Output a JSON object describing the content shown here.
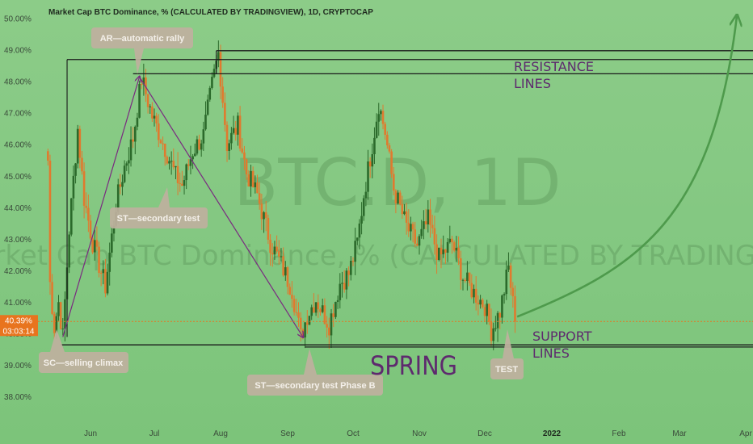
{
  "header": {
    "title": "Market Cap BTC Dominance, % (CALCULATED BY TRADINGVIEW), 1D, CRYPTOCAP"
  },
  "watermark": {
    "symbol": "BTC.D, 1D",
    "name": "Market Cap BTC Dominance, % (CALCULATED BY TRADINGVIEW)"
  },
  "price_tag": {
    "value": "40.39%",
    "countdown": "03:03:14"
  },
  "annotations": {
    "ar": "AR—automatic rally",
    "st1": "ST—secondary test",
    "sc": "SC—selling climax",
    "st2": "ST—secondary test Phase B",
    "test": "TEST",
    "spring": "SPRING",
    "resistance_1": "RESISTANCE",
    "resistance_2": "LINES",
    "support_1": "SUPPORT",
    "support_2": "LINES"
  },
  "colors": {
    "background": "#84c882",
    "up_candle": "#2b6a2b",
    "down_candle": "#e07a2e",
    "trend_line": "#7a2a80",
    "forecast_arrow": "#4e9a4c",
    "level_line": "#1a1a1a",
    "price_tag": "#e8741e"
  },
  "chart_data": {
    "type": "candlestick",
    "title": "Market Cap BTC Dominance, % (CALCULATED BY TRADINGVIEW), 1D, CRYPTOCAP",
    "y_unit": "%",
    "ylim": [
      37.5,
      50.5
    ],
    "y_ticks": [
      "50.00%",
      "49.00%",
      "48.00%",
      "47.00%",
      "46.00%",
      "45.00%",
      "44.00%",
      "43.00%",
      "42.00%",
      "41.00%",
      "40.00%",
      "39.00%",
      "38.00%"
    ],
    "x_ticks": [
      {
        "label": "Jun",
        "bold": false
      },
      {
        "label": "Jul",
        "bold": false
      },
      {
        "label": "Aug",
        "bold": false
      },
      {
        "label": "Sep",
        "bold": false
      },
      {
        "label": "Oct",
        "bold": false
      },
      {
        "label": "Nov",
        "bold": false
      },
      {
        "label": "Dec",
        "bold": false
      },
      {
        "label": "2022",
        "bold": true
      },
      {
        "label": "Feb",
        "bold": false
      },
      {
        "label": "Mar",
        "bold": false
      },
      {
        "label": "Apr",
        "bold": false
      }
    ],
    "last_price": 40.39,
    "levels": {
      "resistance": [
        48.98,
        48.7,
        48.25
      ],
      "support": [
        39.65,
        39.58
      ]
    },
    "trend_points": [
      {
        "label": "sc",
        "value": 39.9
      },
      {
        "label": "ar",
        "value": 48.15
      },
      {
        "label": "st2",
        "value": 39.9
      }
    ],
    "close_path": [
      {
        "date": "2021-05-12",
        "close": 45.5
      },
      {
        "date": "2021-05-13",
        "close": 41.6
      },
      {
        "date": "2021-05-15",
        "close": 40.2
      },
      {
        "date": "2021-05-17",
        "close": 41.0
      },
      {
        "date": "2021-05-19",
        "close": 39.9
      },
      {
        "date": "2021-05-22",
        "close": 43.3
      },
      {
        "date": "2021-05-26",
        "close": 46.5
      },
      {
        "date": "2021-05-29",
        "close": 44.3
      },
      {
        "date": "2021-06-02",
        "close": 42.9
      },
      {
        "date": "2021-06-08",
        "close": 41.5
      },
      {
        "date": "2021-06-13",
        "close": 44.1
      },
      {
        "date": "2021-06-17",
        "close": 45.3
      },
      {
        "date": "2021-06-21",
        "close": 46.2
      },
      {
        "date": "2021-06-25",
        "close": 48.1
      },
      {
        "date": "2021-06-30",
        "close": 46.9
      },
      {
        "date": "2021-07-06",
        "close": 45.9
      },
      {
        "date": "2021-07-11",
        "close": 45.0
      },
      {
        "date": "2021-07-14",
        "close": 44.7
      },
      {
        "date": "2021-07-19",
        "close": 45.8
      },
      {
        "date": "2021-07-24",
        "close": 46.3
      },
      {
        "date": "2021-07-28",
        "close": 47.9
      },
      {
        "date": "2021-07-31",
        "close": 48.9
      },
      {
        "date": "2021-08-04",
        "close": 46.0
      },
      {
        "date": "2021-08-09",
        "close": 46.6
      },
      {
        "date": "2021-08-13",
        "close": 45.1
      },
      {
        "date": "2021-08-18",
        "close": 44.4
      },
      {
        "date": "2021-08-24",
        "close": 42.9
      },
      {
        "date": "2021-08-29",
        "close": 42.2
      },
      {
        "date": "2021-09-03",
        "close": 41.4
      },
      {
        "date": "2021-09-07",
        "close": 39.9
      },
      {
        "date": "2021-09-10",
        "close": 40.6
      },
      {
        "date": "2021-09-14",
        "close": 41.1
      },
      {
        "date": "2021-09-20",
        "close": 40.3
      },
      {
        "date": "2021-09-25",
        "close": 41.6
      },
      {
        "date": "2021-09-29",
        "close": 41.9
      },
      {
        "date": "2021-10-03",
        "close": 42.9
      },
      {
        "date": "2021-10-06",
        "close": 44.4
      },
      {
        "date": "2021-10-10",
        "close": 46.0
      },
      {
        "date": "2021-10-13",
        "close": 47.3
      },
      {
        "date": "2021-10-16",
        "close": 46.4
      },
      {
        "date": "2021-10-20",
        "close": 44.6
      },
      {
        "date": "2021-10-26",
        "close": 43.4
      },
      {
        "date": "2021-10-31",
        "close": 42.8
      },
      {
        "date": "2021-11-05",
        "close": 43.6
      },
      {
        "date": "2021-11-10",
        "close": 42.4
      },
      {
        "date": "2021-11-16",
        "close": 42.9
      },
      {
        "date": "2021-11-21",
        "close": 41.8
      },
      {
        "date": "2021-11-26",
        "close": 41.3
      },
      {
        "date": "2021-12-01",
        "close": 40.9
      },
      {
        "date": "2021-12-04",
        "close": 40.1
      },
      {
        "date": "2021-12-08",
        "close": 40.7
      },
      {
        "date": "2021-12-12",
        "close": 42.1
      },
      {
        "date": "2021-12-15",
        "close": 40.39
      }
    ]
  }
}
